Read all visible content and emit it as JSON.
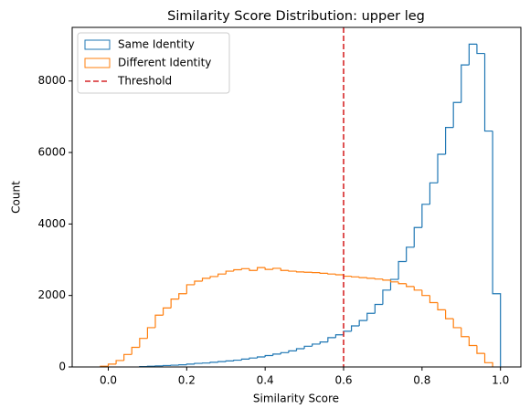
{
  "chart_data": {
    "type": "histogram",
    "title": "Similarity Score Distribution: upper leg",
    "xlabel": "Similarity Score",
    "ylabel": "Count",
    "xlim": [
      -0.092,
      1.052
    ],
    "ylim": [
      0,
      9500
    ],
    "xticks": [
      {
        "value": 0,
        "label": "0.0"
      },
      0.2,
      0.4,
      0.6,
      0.8,
      {
        "value": 1,
        "label": "1.0"
      }
    ],
    "yticks": [
      0,
      2000,
      4000,
      6000,
      8000
    ],
    "legend": "upper left",
    "series": [
      {
        "name": "Same Identity",
        "color": "#1f77b4",
        "bins": [
          0.08,
          0.1,
          0.12,
          0.14,
          0.16,
          0.18,
          0.2,
          0.22,
          0.24,
          0.26,
          0.28,
          0.3,
          0.32,
          0.34,
          0.36,
          0.38,
          0.4,
          0.42,
          0.44,
          0.46,
          0.48,
          0.5,
          0.52,
          0.54,
          0.56,
          0.58,
          0.6,
          0.62,
          0.64,
          0.66,
          0.68,
          0.7,
          0.72,
          0.74,
          0.76,
          0.78,
          0.8,
          0.82,
          0.84,
          0.86,
          0.88,
          0.9,
          0.92,
          0.94,
          0.96,
          0.98,
          1.0
        ],
        "values": [
          10,
          20,
          30,
          40,
          50,
          60,
          80,
          100,
          110,
          130,
          150,
          170,
          190,
          220,
          250,
          280,
          320,
          360,
          400,
          450,
          510,
          580,
          640,
          700,
          820,
          900,
          1000,
          1150,
          1300,
          1500,
          1750,
          2150,
          2450,
          2950,
          3350,
          3900,
          4550,
          5150,
          5950,
          6700,
          7400,
          8450,
          9030,
          8770,
          6600,
          2050
        ]
      },
      {
        "name": "Different Identity",
        "color": "#ff7f0e",
        "bins": [
          -0.02,
          0.0,
          0.02,
          0.04,
          0.06,
          0.08,
          0.1,
          0.12,
          0.14,
          0.16,
          0.18,
          0.2,
          0.22,
          0.24,
          0.26,
          0.28,
          0.3,
          0.32,
          0.34,
          0.36,
          0.38,
          0.4,
          0.42,
          0.44,
          0.46,
          0.48,
          0.5,
          0.52,
          0.54,
          0.56,
          0.58,
          0.6,
          0.62,
          0.64,
          0.66,
          0.68,
          0.7,
          0.72,
          0.74,
          0.76,
          0.78,
          0.8,
          0.82,
          0.84,
          0.86,
          0.88,
          0.9,
          0.92,
          0.94,
          0.96,
          0.98
        ],
        "values": [
          20,
          80,
          180,
          350,
          550,
          800,
          1100,
          1450,
          1650,
          1900,
          2050,
          2300,
          2400,
          2480,
          2530,
          2600,
          2680,
          2720,
          2750,
          2700,
          2780,
          2730,
          2760,
          2700,
          2680,
          2660,
          2650,
          2640,
          2620,
          2600,
          2580,
          2540,
          2520,
          2500,
          2480,
          2460,
          2430,
          2380,
          2330,
          2250,
          2150,
          2000,
          1800,
          1600,
          1350,
          1100,
          850,
          600,
          380,
          120
        ]
      }
    ],
    "threshold": {
      "name": "Threshold",
      "value": 0.6,
      "color": "#d62728"
    }
  }
}
